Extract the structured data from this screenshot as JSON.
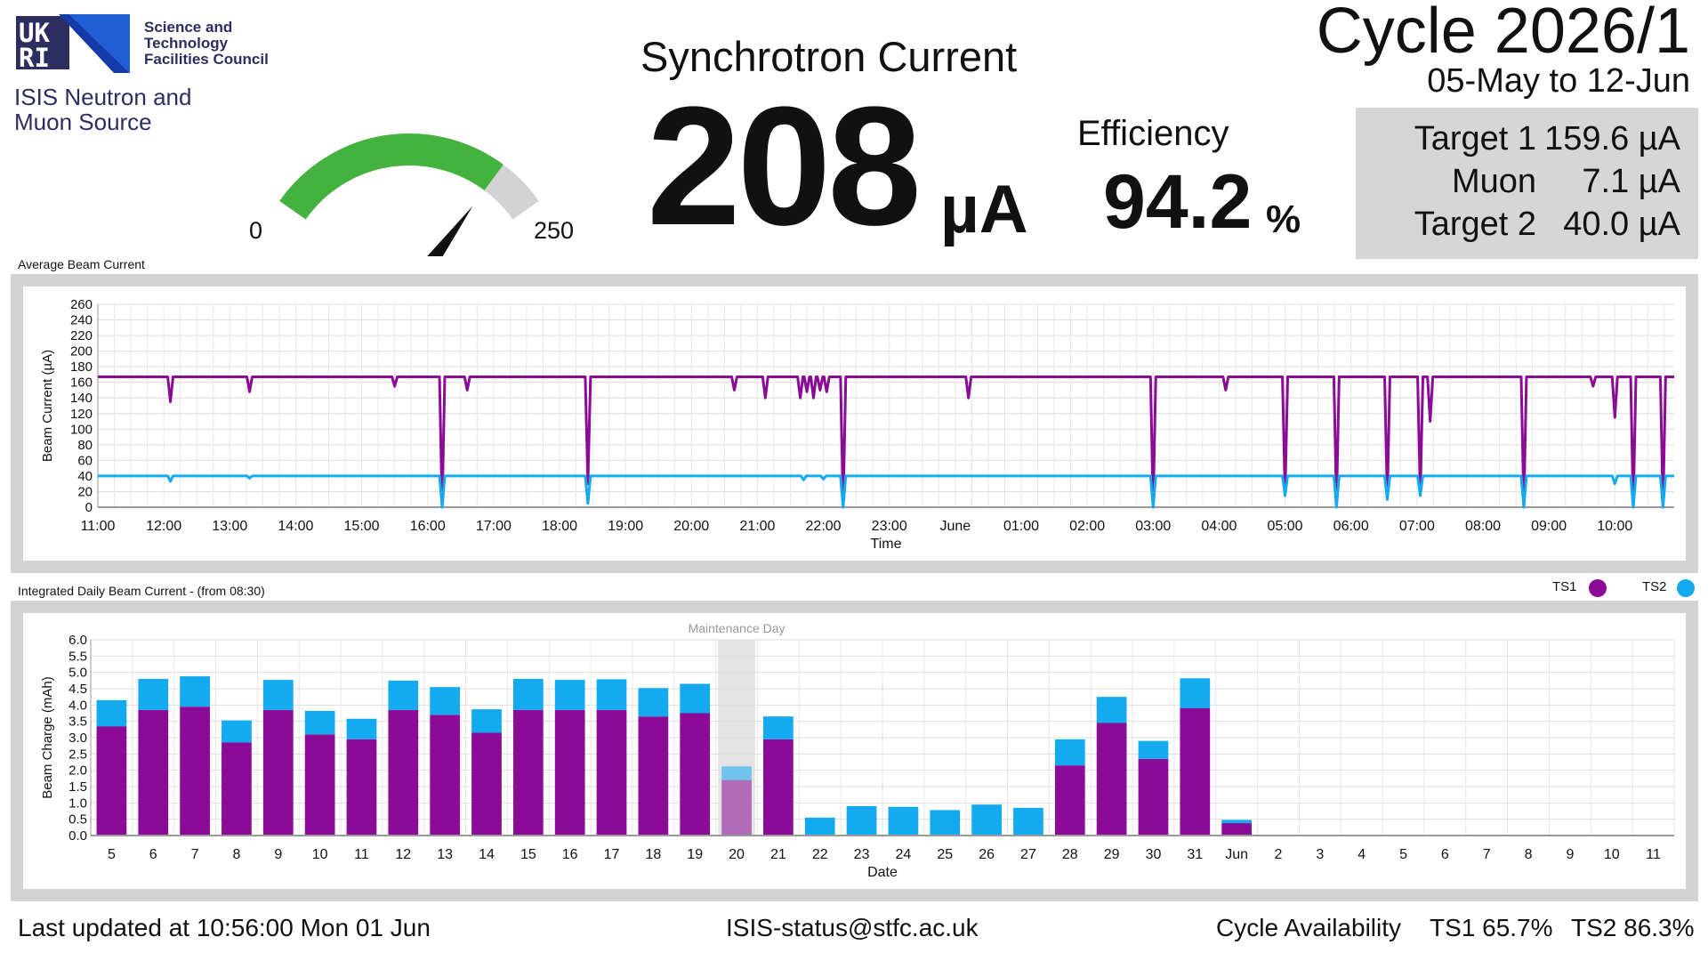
{
  "header": {
    "org_lines": [
      "Science and",
      "Technology",
      "Facilities Council"
    ],
    "ukri_letters": [
      "UK",
      "RI"
    ],
    "facility_lines": [
      "ISIS Neutron and",
      "Muon Source"
    ],
    "sync_title": "Synchrotron Current",
    "current_value": "208",
    "current_unit": "µA",
    "efficiency_label": "Efficiency",
    "efficiency_value": "94.2",
    "efficiency_unit": "%",
    "cycle_title": "Cycle 2026/1",
    "cycle_dates": "05-May to 12-Jun",
    "targets": [
      {
        "name": "Target 1",
        "value": "159.6 µA"
      },
      {
        "name": "Muon",
        "value": "7.1 µA"
      },
      {
        "name": "Target 2",
        "value": "40.0 µA"
      }
    ]
  },
  "gauge": {
    "min_label": "0",
    "max_label": "250",
    "min": 0,
    "max": 250,
    "value": 208,
    "fill_color": "#44b23e",
    "track_color": "#d3d3d3"
  },
  "colors": {
    "ts1": "#8b0a96",
    "ts2": "#13aaf0",
    "frame": "#d3d3d3"
  },
  "chart_data": [
    {
      "type": "line",
      "title": "Average Beam Current",
      "xlabel": "Time",
      "ylabel": "Beam Current (µA)",
      "ylim": [
        0,
        260
      ],
      "yticks": [
        0,
        20,
        40,
        60,
        80,
        100,
        120,
        140,
        160,
        180,
        200,
        220,
        240,
        260
      ],
      "xlim": [
        11.0,
        34.9
      ],
      "xtick_positions": [
        11,
        12,
        13,
        14,
        15,
        16,
        17,
        18,
        19,
        20,
        21,
        22,
        23,
        24,
        25,
        26,
        27,
        28,
        29,
        30,
        31,
        32,
        33,
        34
      ],
      "xtick_labels": [
        "11:00",
        "12:00",
        "13:00",
        "14:00",
        "15:00",
        "16:00",
        "17:00",
        "18:00",
        "19:00",
        "20:00",
        "21:00",
        "22:00",
        "23:00",
        "June",
        "01:00",
        "02:00",
        "03:00",
        "04:00",
        "05:00",
        "06:00",
        "07:00",
        "08:00",
        "09:00",
        "10:00"
      ],
      "grid": true,
      "series": [
        {
          "name": "TS1",
          "baseline": 167,
          "dips": [
            [
              12.1,
              135
            ],
            [
              13.3,
              148
            ],
            [
              15.5,
              155
            ],
            [
              16.22,
              0
            ],
            [
              16.6,
              150
            ],
            [
              18.43,
              30
            ],
            [
              20.65,
              150
            ],
            [
              21.12,
              140
            ],
            [
              21.65,
              140
            ],
            [
              21.75,
              148
            ],
            [
              21.85,
              140
            ],
            [
              21.95,
              150
            ],
            [
              22.05,
              148
            ],
            [
              22.3,
              0
            ],
            [
              24.2,
              140
            ],
            [
              27.0,
              0
            ],
            [
              28.1,
              150
            ],
            [
              29.0,
              15
            ],
            [
              29.78,
              5
            ],
            [
              30.55,
              10
            ],
            [
              31.05,
              15
            ],
            [
              31.2,
              110
            ],
            [
              32.62,
              0
            ],
            [
              33.67,
              155
            ],
            [
              34.0,
              115
            ],
            [
              34.28,
              0
            ],
            [
              34.73,
              0
            ]
          ]
        },
        {
          "name": "TS2",
          "baseline": 40,
          "dips": [
            [
              12.1,
              33
            ],
            [
              13.3,
              37
            ],
            [
              16.22,
              0
            ],
            [
              18.43,
              5
            ],
            [
              21.7,
              35
            ],
            [
              22.0,
              36
            ],
            [
              22.3,
              0
            ],
            [
              27.0,
              0
            ],
            [
              29.0,
              15
            ],
            [
              29.78,
              0
            ],
            [
              30.55,
              10
            ],
            [
              31.05,
              15
            ],
            [
              32.62,
              0
            ],
            [
              34.0,
              30
            ],
            [
              34.28,
              0
            ],
            [
              34.73,
              0
            ]
          ]
        }
      ]
    },
    {
      "type": "bar",
      "stacked": true,
      "title": "Integrated Daily Beam Current - (from 08:30)",
      "xlabel": "Date",
      "ylabel": "Beam Charge (mAh)",
      "ylim": [
        0,
        6.0
      ],
      "yticks": [
        "0.0",
        "0.5",
        "1.0",
        "1.5",
        "2.0",
        "2.5",
        "3.0",
        "3.5",
        "4.0",
        "4.5",
        "5.0",
        "5.5",
        "6.0"
      ],
      "legend_position": "top-right",
      "annotation": {
        "label": "Maintenance Day",
        "category_index": 15
      },
      "categories": [
        "5",
        "6",
        "7",
        "8",
        "9",
        "10",
        "11",
        "12",
        "13",
        "14",
        "15",
        "16",
        "17",
        "18",
        "19",
        "20",
        "21",
        "22",
        "23",
        "24",
        "25",
        "26",
        "27",
        "28",
        "29",
        "30",
        "31",
        "Jun",
        "2",
        "3",
        "4",
        "5",
        "6",
        "7",
        "8",
        "9",
        "10",
        "11"
      ],
      "series": [
        {
          "name": "TS1",
          "values": [
            3.35,
            3.85,
            3.95,
            2.85,
            3.85,
            3.1,
            2.95,
            3.85,
            3.7,
            3.15,
            3.85,
            3.85,
            3.85,
            3.65,
            3.75,
            1.7,
            2.95,
            0,
            0,
            0,
            0,
            0,
            0,
            2.15,
            3.45,
            2.35,
            3.9,
            0.38,
            0,
            0,
            0,
            0,
            0,
            0,
            0,
            0,
            0,
            0
          ]
        },
        {
          "name": "TS2",
          "values": [
            0.8,
            0.95,
            0.93,
            0.68,
            0.92,
            0.72,
            0.63,
            0.9,
            0.85,
            0.72,
            0.95,
            0.92,
            0.94,
            0.87,
            0.9,
            0.42,
            0.7,
            0.55,
            0.9,
            0.88,
            0.78,
            0.95,
            0.85,
            0.8,
            0.8,
            0.55,
            0.92,
            0.1,
            0,
            0,
            0,
            0,
            0,
            0,
            0,
            0,
            0,
            0
          ]
        }
      ]
    }
  ],
  "footer": {
    "last_updated": "Last updated at 10:56:00 Mon 01 Jun",
    "email": "ISIS-status@stfc.ac.uk",
    "availability_label": "Cycle Availability",
    "ts1_availability": "TS1 65.7%",
    "ts2_availability": "TS2 86.3%"
  }
}
